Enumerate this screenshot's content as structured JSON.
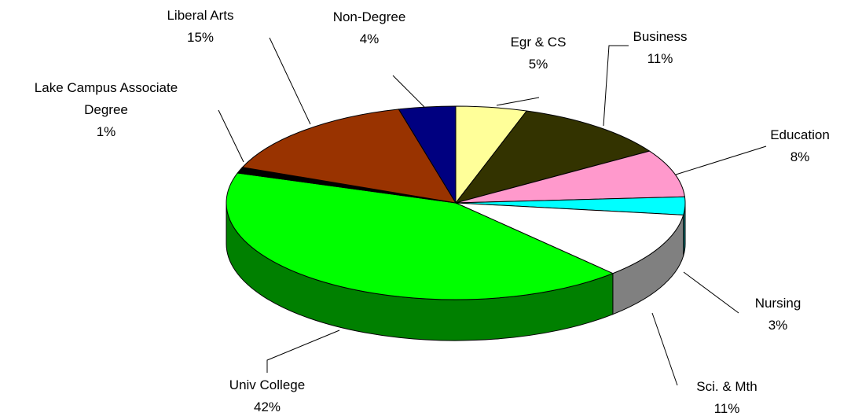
{
  "chart_data": {
    "type": "pie3d",
    "categories": [
      "Egr & CS",
      "Business",
      "Education",
      "Nursing",
      "Sci. & Mth",
      "Univ College",
      "Lake Campus Associate Degree",
      "Liberal Arts",
      "Non-Degree"
    ],
    "values": [
      5,
      11,
      8,
      3,
      11,
      42,
      1,
      15,
      4
    ],
    "value_labels": [
      "5%",
      "11%",
      "8%",
      "3%",
      "11%",
      "42%",
      "1%",
      "15%",
      "4%"
    ],
    "colors": [
      "#ffff99",
      "#333300",
      "#ff99cc",
      "#00ffff",
      "#ffffff",
      "#00ff00",
      "#000000",
      "#993300",
      "#000080"
    ]
  }
}
